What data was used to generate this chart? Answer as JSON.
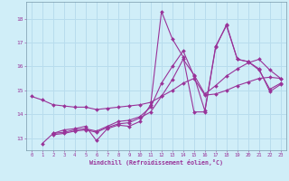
{
  "xlabel": "Windchill (Refroidissement éolien,°C)",
  "ylabel": "",
  "bg_color": "#d0eef8",
  "line_color": "#993399",
  "grid_color": "#b8dced",
  "xlim": [
    -0.5,
    23.5
  ],
  "ylim": [
    12.5,
    18.7
  ],
  "yticks": [
    13,
    14,
    15,
    16,
    17,
    18
  ],
  "xticks": [
    0,
    1,
    2,
    3,
    4,
    5,
    6,
    7,
    8,
    9,
    10,
    11,
    12,
    13,
    14,
    15,
    16,
    17,
    18,
    19,
    20,
    21,
    22,
    23
  ],
  "lines": [
    {
      "x": [
        0,
        1,
        2,
        3,
        4,
        5,
        6,
        7,
        8,
        9,
        10,
        11,
        12,
        13,
        14,
        15,
        16,
        17,
        18,
        19,
        20,
        21,
        22,
        23
      ],
      "y": [
        14.75,
        14.6,
        14.4,
        14.35,
        14.3,
        14.3,
        14.2,
        14.25,
        14.3,
        14.35,
        14.4,
        14.5,
        14.75,
        15.0,
        15.3,
        15.5,
        14.8,
        14.85,
        15.0,
        15.2,
        15.35,
        15.5,
        15.55,
        15.5
      ]
    },
    {
      "x": [
        1,
        2,
        3,
        4,
        5,
        6,
        7,
        8,
        9,
        10,
        11,
        12,
        13,
        14,
        15,
        16,
        17,
        18,
        19,
        20,
        21,
        22,
        23
      ],
      "y": [
        12.78,
        13.2,
        13.35,
        13.4,
        13.5,
        12.9,
        13.4,
        13.55,
        13.5,
        13.7,
        14.4,
        18.3,
        17.15,
        16.4,
        14.1,
        14.1,
        16.8,
        17.75,
        16.3,
        16.2,
        15.9,
        14.95,
        15.25
      ]
    },
    {
      "x": [
        2,
        3,
        4,
        5,
        6,
        7,
        8,
        9,
        10,
        11,
        12,
        13,
        14,
        15,
        16,
        17,
        18,
        19,
        20,
        21,
        22,
        23
      ],
      "y": [
        13.2,
        13.25,
        13.35,
        13.4,
        13.3,
        13.5,
        13.7,
        13.75,
        13.9,
        14.3,
        15.3,
        16.0,
        16.65,
        15.6,
        14.15,
        16.85,
        17.7,
        16.3,
        16.2,
        15.85,
        15.05,
        15.3
      ]
    },
    {
      "x": [
        2,
        3,
        4,
        5,
        6,
        7,
        8,
        9,
        10,
        11,
        12,
        13,
        14,
        15,
        16,
        17,
        18,
        19,
        20,
        21,
        22,
        23
      ],
      "y": [
        13.15,
        13.2,
        13.3,
        13.35,
        13.25,
        13.45,
        13.6,
        13.65,
        13.85,
        14.1,
        14.75,
        15.45,
        16.3,
        15.65,
        14.85,
        15.2,
        15.6,
        15.9,
        16.15,
        16.3,
        15.85,
        15.5
      ]
    }
  ]
}
